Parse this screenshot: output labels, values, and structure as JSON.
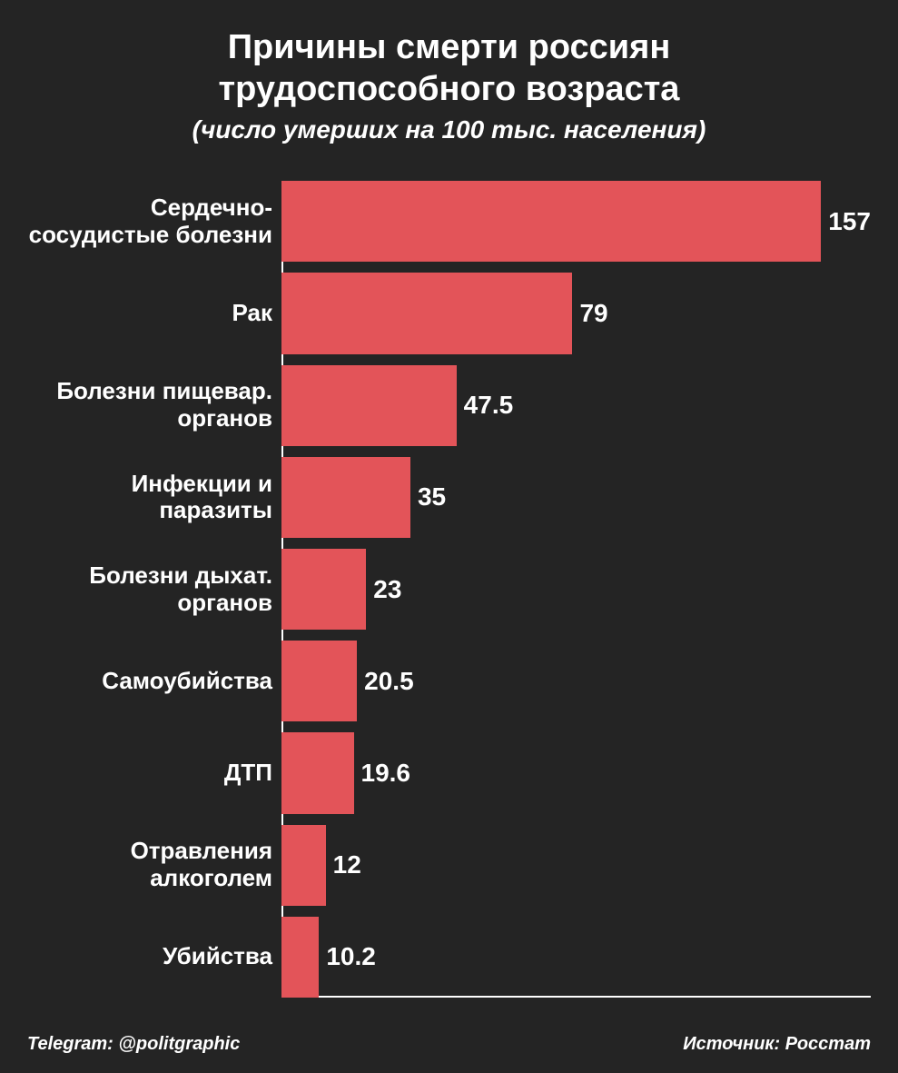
{
  "chart": {
    "type": "horizontal_bar",
    "title_line1": "Причины смерти россиян",
    "title_line2": "трудоспособного возраста",
    "subtitle": "(число умерших на 100 тыс. населения)",
    "title_fontsize": 38,
    "subtitle_fontsize": 28,
    "background_color": "#242424",
    "text_color": "#ffffff",
    "bar_color": "#e35459",
    "axis_color": "#ffffff",
    "label_fontsize": 26,
    "value_fontsize": 28,
    "footer_fontsize": 20,
    "max_value": 160,
    "categories": [
      "Сердечно-сосудистые болезни",
      "Рак",
      "Болезни пищевар. органов",
      "Инфекции и паразиты",
      "Болезни дыхат. органов",
      "Самоубийства",
      "ДТП",
      "Отравления алкоголем",
      "Убийства"
    ],
    "values": [
      157,
      79,
      47.5,
      35,
      23,
      20.5,
      19.6,
      12,
      10.2
    ],
    "footer_left": "Telegram: @politgraphic",
    "footer_right": "Источник: Росстат"
  }
}
